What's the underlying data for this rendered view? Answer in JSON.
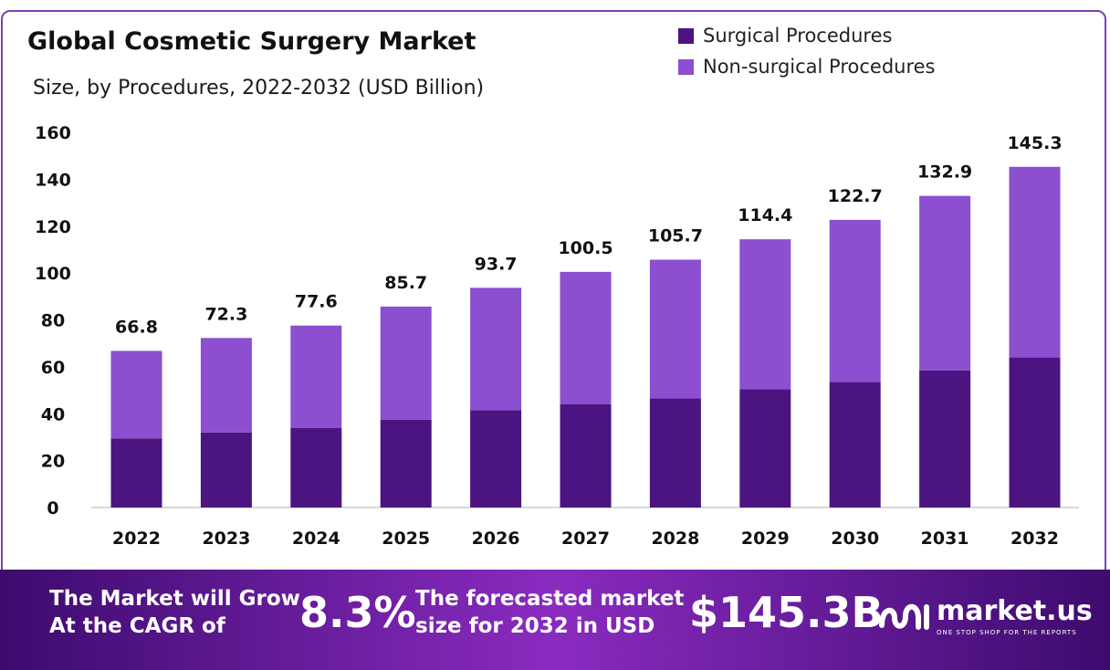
{
  "header": {
    "title": "Global Cosmetic Surgery Market",
    "subtitle": "Size, by Procedures, 2022-2032 (USD Billion)"
  },
  "legend": [
    {
      "label": "Surgical Procedures",
      "color": "#4b1480"
    },
    {
      "label": "Non-surgical Procedures",
      "color": "#8b4fd0"
    }
  ],
  "chart_data": {
    "type": "bar",
    "stacked": true,
    "categories": [
      "2022",
      "2023",
      "2024",
      "2025",
      "2026",
      "2027",
      "2028",
      "2029",
      "2030",
      "2031",
      "2032"
    ],
    "series": [
      {
        "name": "Surgical Procedures",
        "color": "#4b1480",
        "values": [
          29.5,
          32.0,
          34.0,
          37.5,
          41.5,
          44.0,
          46.5,
          50.5,
          53.5,
          58.5,
          64.0
        ]
      },
      {
        "name": "Non-surgical Procedures",
        "color": "#8b4fd0",
        "values": [
          37.3,
          40.3,
          43.6,
          48.2,
          52.2,
          56.5,
          59.2,
          63.9,
          69.2,
          74.4,
          81.3
        ]
      }
    ],
    "totals": [
      66.8,
      72.3,
      77.6,
      85.7,
      93.7,
      100.5,
      105.7,
      114.4,
      122.7,
      132.9,
      145.3
    ],
    "total_labels": [
      "66.8",
      "72.3",
      "77.6",
      "85.7",
      "93.7",
      "100.5",
      "105.7",
      "114.4",
      "122.7",
      "132.9",
      "145.3"
    ],
    "yticks": [
      0,
      20,
      40,
      60,
      80,
      100,
      120,
      140,
      160
    ],
    "ylim": [
      0,
      160
    ],
    "grid": false,
    "legend_position": "top-right"
  },
  "banner": {
    "cagr_text_line1": "The Market will Grow",
    "cagr_text_line2": "At the CAGR of",
    "cagr_value": "8.3%",
    "forecast_text_line1": "The forecasted market",
    "forecast_text_line2": "size for 2032 in USD",
    "forecast_value": "$145.3B",
    "brand_name": "market.us",
    "brand_tagline": "ONE STOP SHOP FOR THE REPORTS",
    "brand_icon": "market-us-logo-icon"
  }
}
